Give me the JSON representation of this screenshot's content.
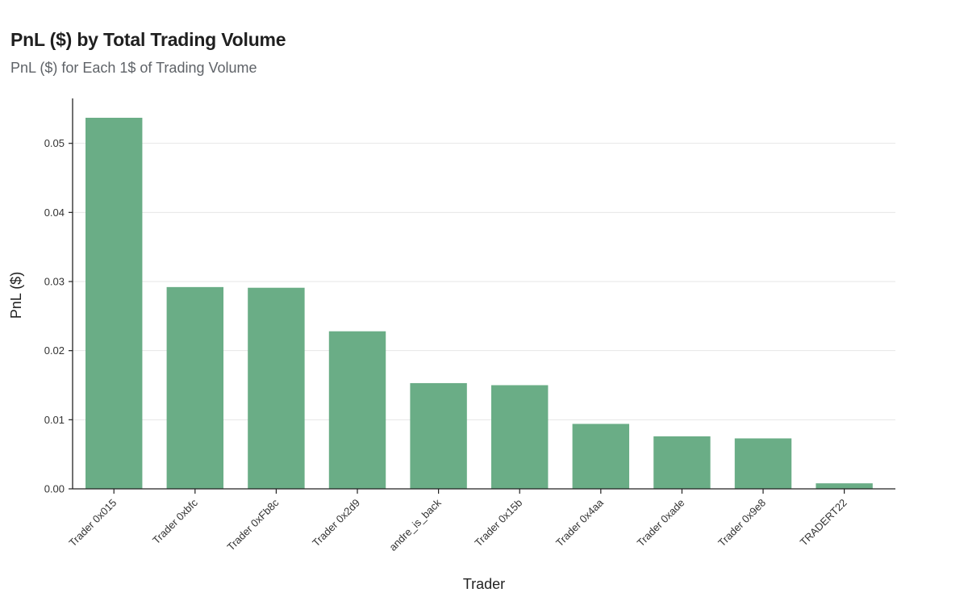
{
  "chart_data": {
    "type": "bar",
    "title": "PnL ($) by Total Trading Volume",
    "subtitle": "PnL ($) for Each 1$ of Trading Volume",
    "xlabel": "Trader",
    "ylabel": "PnL ($)",
    "categories": [
      "Trader 0x015",
      "Trader 0xbfc",
      "Trader 0xFb8c",
      "Trader 0x2d9",
      "andre_is_back",
      "Trader 0x15b",
      "Trader 0x4aa",
      "Trader 0xade",
      "Trader 0x9e8",
      "TRADERT22"
    ],
    "values": [
      0.0537,
      0.0292,
      0.0291,
      0.0228,
      0.0153,
      0.015,
      0.0094,
      0.0076,
      0.0073,
      0.0008
    ],
    "ylim": [
      0,
      0.0565
    ],
    "yticks": [
      0.0,
      0.01,
      0.02,
      0.03,
      0.04,
      0.05
    ],
    "ytick_labels": [
      "0.00",
      "0.01",
      "0.02",
      "0.03",
      "0.04",
      "0.05"
    ],
    "grid": true,
    "bar_color": "#6aad86"
  }
}
